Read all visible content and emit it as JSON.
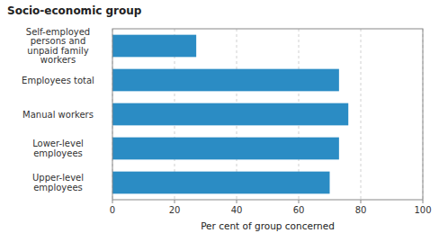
{
  "chart_data": {
    "type": "bar",
    "orientation": "horizontal",
    "title": "Socio-economic group",
    "xlabel": "Per cent of group concerned",
    "categories": [
      "Upper-level\nemployees",
      "Lower-level\nemployees",
      "Manual workers",
      "Employees total",
      "Self-employed\npersons and\nunpaid family\nworkers"
    ],
    "values": [
      70,
      73,
      76,
      73,
      27
    ],
    "color": "#2b8cc4",
    "xlim": [
      0,
      100
    ],
    "xticks": [
      0,
      20,
      40,
      60,
      80,
      100
    ],
    "grid": true
  }
}
